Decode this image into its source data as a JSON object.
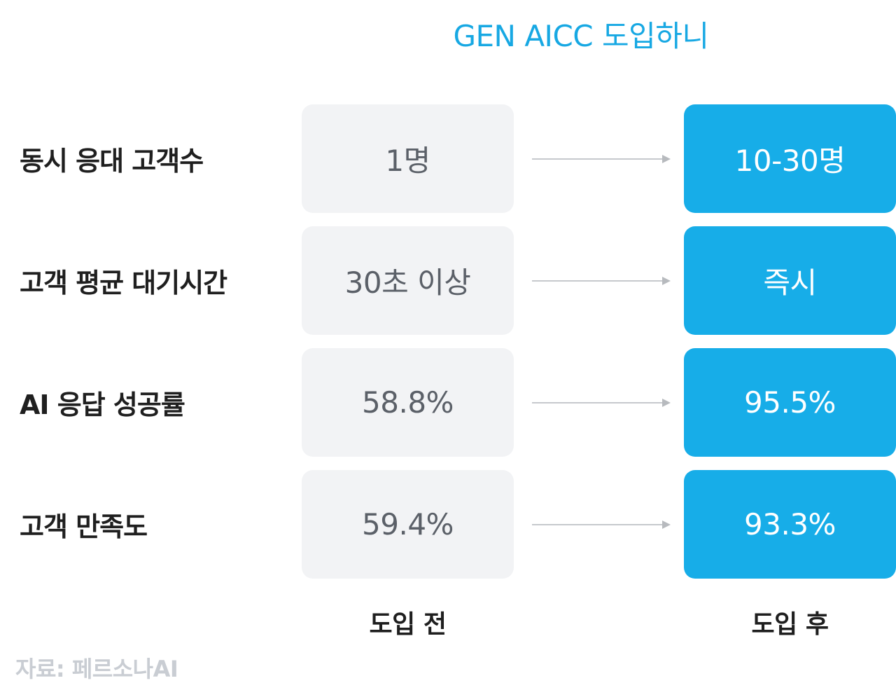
{
  "title": "GEN AICC 도입하니",
  "rows": [
    {
      "label": "동시 응대 고객수",
      "before": "1명",
      "after": "10-30명"
    },
    {
      "label": "고객 평균 대기시간",
      "before": "30초 이상",
      "after": "즉시"
    },
    {
      "label": "AI 응답 성공률",
      "before": "58.8%",
      "after": "95.5%"
    },
    {
      "label": "고객 만족도",
      "before": "59.4%",
      "after": "93.3%"
    }
  ],
  "columns": {
    "before": "도입 전",
    "after": "도입 후"
  },
  "source": "자료: 페르소나AI",
  "colors": {
    "title": "#17a8e3",
    "before_box": "#f2f3f5",
    "after_box": "#17ade8",
    "arrow": "#c6c9cd"
  },
  "icons": {
    "arrow": "arrow-right-icon"
  }
}
